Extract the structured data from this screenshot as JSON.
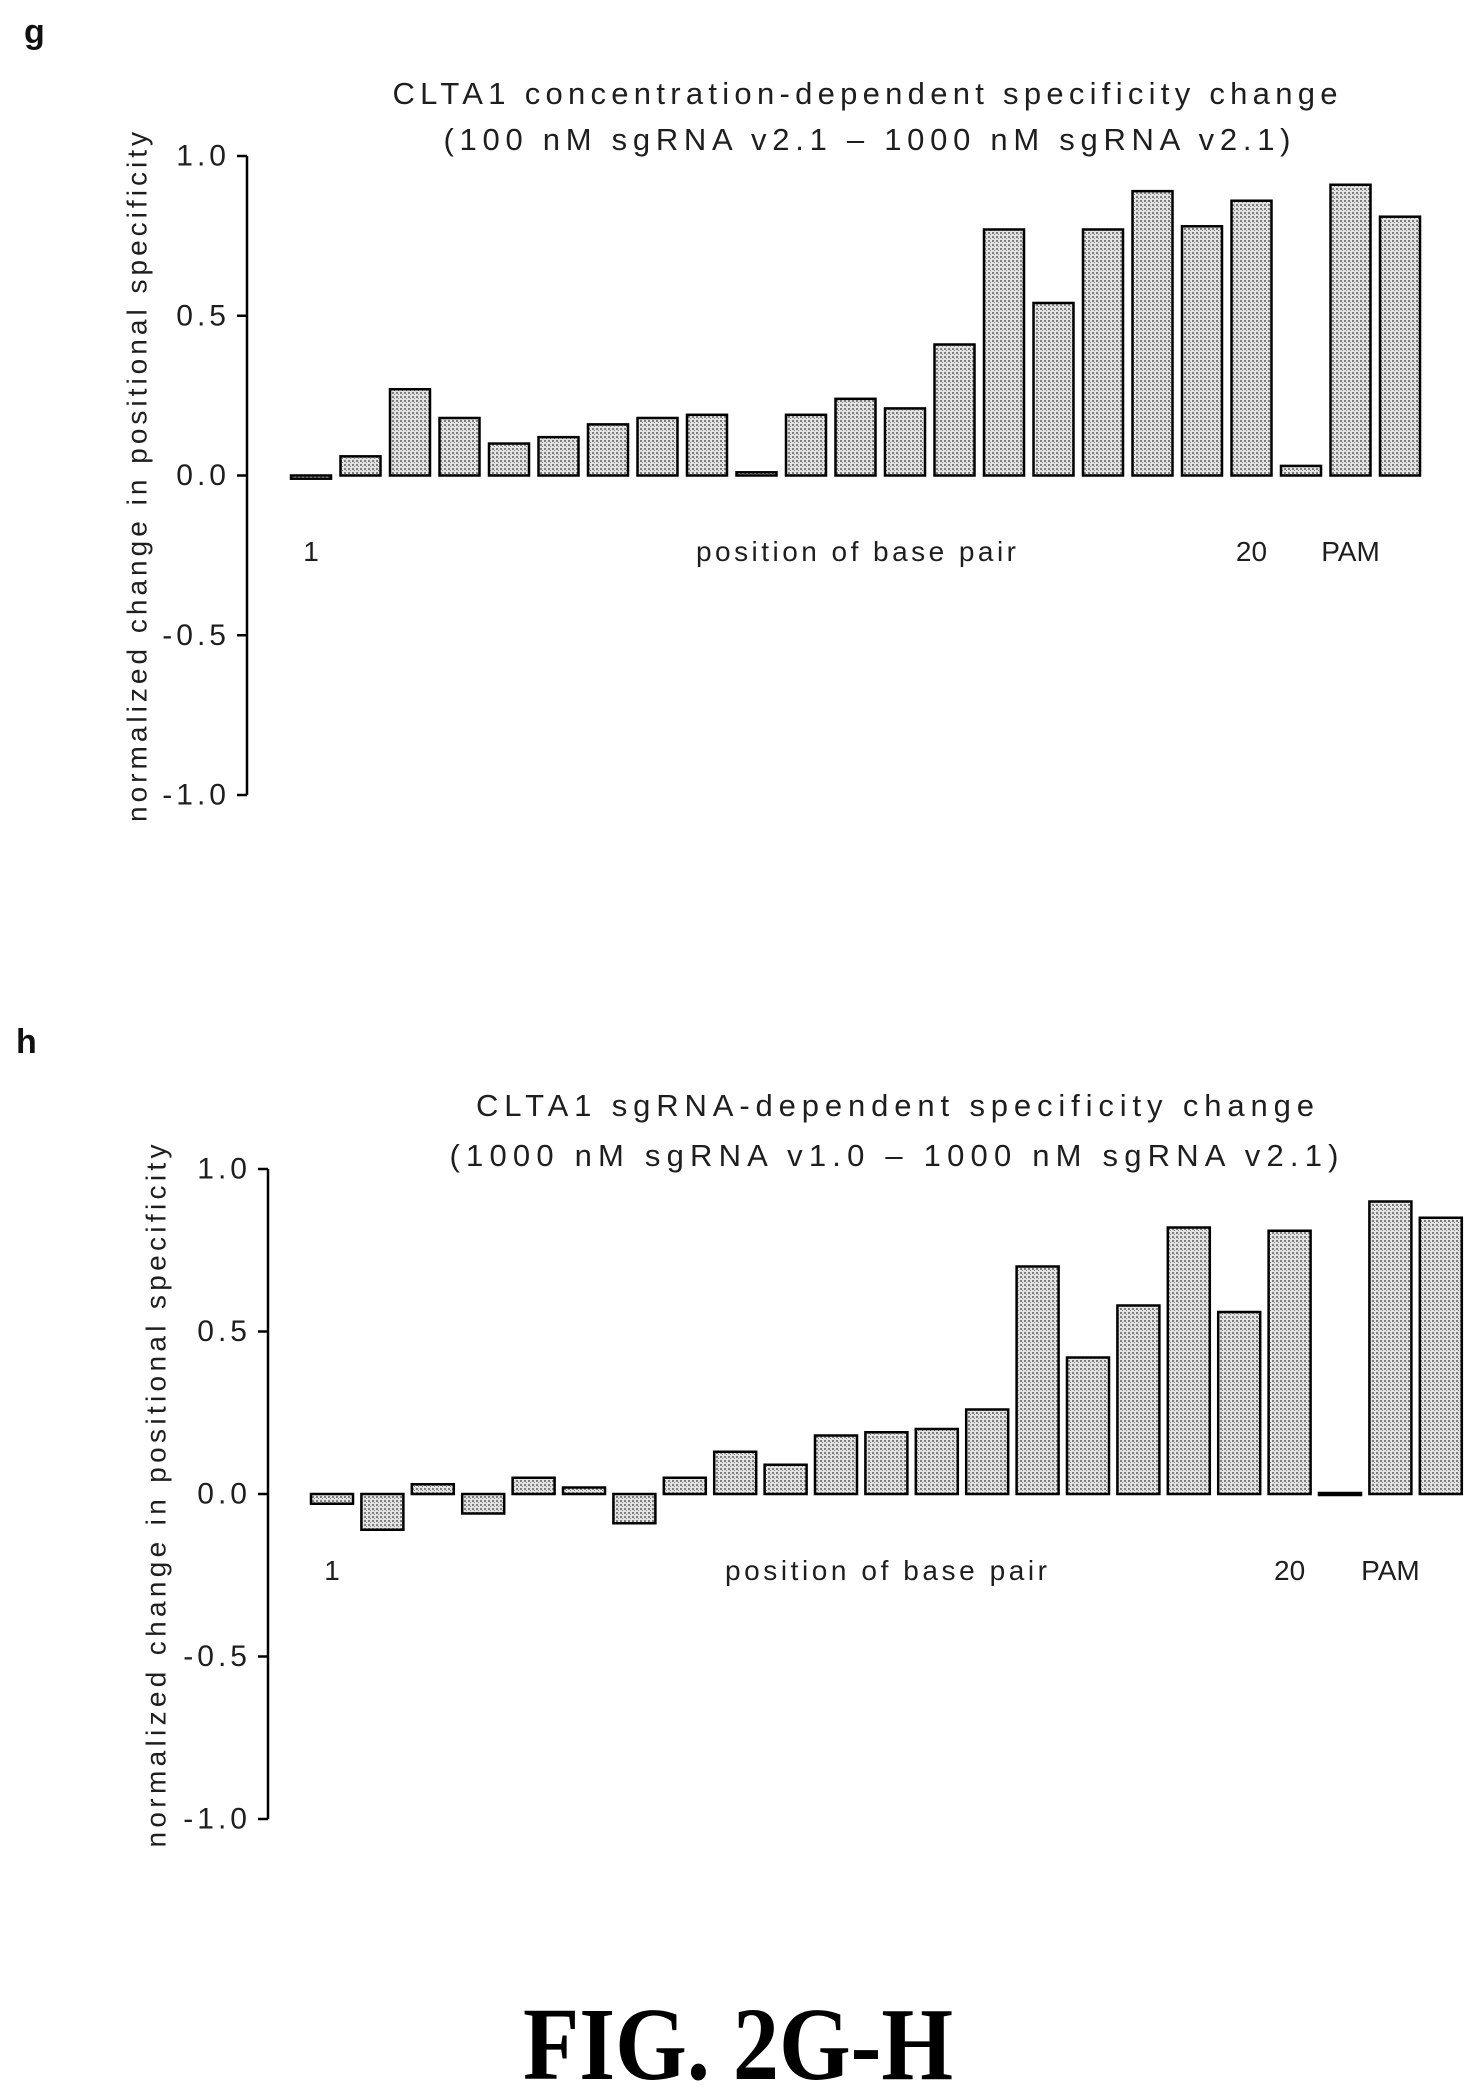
{
  "figure": {
    "label": "FIG. 2G-H"
  },
  "style": {
    "bar_fill": "#7d7d7d",
    "bar_stroke": "#000000",
    "text": "#1e1e1e"
  },
  "chart_data": [
    {
      "panel_label": "g",
      "type": "bar",
      "title": "CLTA1 concentration-dependent specificity change",
      "subtitle": "(100 nM sgRNA v2.1 – 1000 nM sgRNA v2.1)",
      "ylabel": "normalized change in positional specificity",
      "xlabel": "position of base pair",
      "ylim": [
        -1.0,
        1.0
      ],
      "ytick_labels": [
        "1.0",
        "0.5",
        "0.0",
        "-0.5",
        "-1.0"
      ],
      "grid": false,
      "x": [
        1,
        2,
        3,
        4,
        5,
        6,
        7,
        8,
        9,
        10,
        11,
        12,
        13,
        14,
        15,
        16,
        17,
        18,
        19,
        20,
        21,
        22,
        23
      ],
      "tick_labels": [
        "1",
        "",
        "",
        "",
        "",
        "",
        "",
        "",
        "",
        "",
        "",
        "",
        "",
        "",
        "",
        "",
        "",
        "",
        "",
        "20",
        "",
        "PAM",
        ""
      ],
      "values": [
        -0.01,
        0.06,
        0.27,
        0.18,
        0.1,
        0.12,
        0.16,
        0.18,
        0.19,
        0.01,
        0.19,
        0.24,
        0.21,
        0.41,
        0.77,
        0.54,
        0.77,
        0.89,
        0.78,
        0.86,
        0.03,
        0.91,
        0.81
      ]
    },
    {
      "panel_label": "h",
      "type": "bar",
      "title": "CLTA1 sgRNA-dependent specificity change",
      "subtitle": "(1000 nM sgRNA v1.0 – 1000 nM sgRNA v2.1)",
      "ylabel": "normalized change in positional specificity",
      "xlabel": "position of base pair",
      "ylim": [
        -1.0,
        1.0
      ],
      "ytick_labels": [
        "1.0",
        "0.5",
        "0.0",
        "-0.5",
        "-1.0"
      ],
      "grid": false,
      "x": [
        1,
        2,
        3,
        4,
        5,
        6,
        7,
        8,
        9,
        10,
        11,
        12,
        13,
        14,
        15,
        16,
        17,
        18,
        19,
        20,
        21,
        22,
        23
      ],
      "tick_labels": [
        "1",
        "",
        "",
        "",
        "",
        "",
        "",
        "",
        "",
        "",
        "",
        "",
        "",
        "",
        "",
        "",
        "",
        "",
        "",
        "20",
        "",
        "PAM",
        ""
      ],
      "values": [
        -0.03,
        -0.11,
        0.03,
        -0.06,
        0.05,
        0.02,
        -0.09,
        0.05,
        0.13,
        0.09,
        0.18,
        0.19,
        0.2,
        0.26,
        0.7,
        0.42,
        0.58,
        0.82,
        0.56,
        0.81,
        0.0,
        0.9,
        0.85
      ]
    }
  ]
}
